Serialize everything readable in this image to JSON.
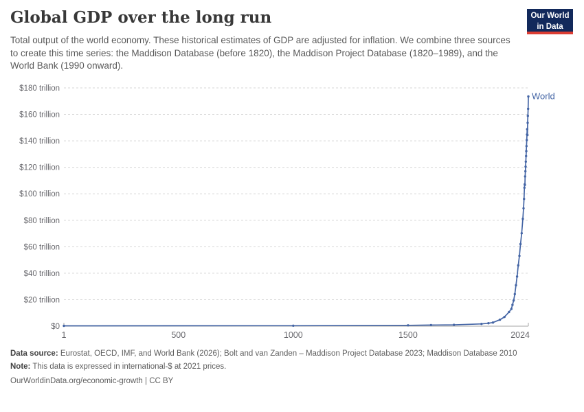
{
  "header": {
    "title": "Global GDP over the long run",
    "subtitle": "Total output of the world economy. These historical estimates of GDP are adjusted for inflation. We combine three sources to create this time series: the Maddison Database (before 1820), the Maddison Project Database (1820–1989), and the World Bank (1990 onward).",
    "logo": {
      "line1": "Our World",
      "line2": "in Data",
      "bg_color": "#12295b",
      "accent_color": "#dc3d33"
    }
  },
  "chart_data": {
    "type": "line",
    "title": "Global GDP over the long run",
    "xlabel": "",
    "ylabel": "",
    "unit": "trillion international-$ at 2021 prices",
    "xlim": [
      1,
      2024
    ],
    "ylim": [
      0,
      180
    ],
    "grid": "horizontal-dashed",
    "grid_color": "#d5d5d5",
    "axis_color": "#a5a5a5",
    "axis_label_color": "#67676c",
    "legend_position": "end-of-line",
    "xticks": [
      {
        "value": 1,
        "label": "1"
      },
      {
        "value": 500,
        "label": "500"
      },
      {
        "value": 1000,
        "label": "1000"
      },
      {
        "value": 1500,
        "label": "1500"
      },
      {
        "value": 2024,
        "label": "2024"
      }
    ],
    "yticks": [
      {
        "value": 0,
        "label": "$0"
      },
      {
        "value": 20,
        "label": "$20 trillion"
      },
      {
        "value": 40,
        "label": "$40 trillion"
      },
      {
        "value": 60,
        "label": "$60 trillion"
      },
      {
        "value": 80,
        "label": "$80 trillion"
      },
      {
        "value": 100,
        "label": "$100 trillion"
      },
      {
        "value": 120,
        "label": "$120 trillion"
      },
      {
        "value": 140,
        "label": "$140 trillion"
      },
      {
        "value": 160,
        "label": "$160 trillion"
      },
      {
        "value": 180,
        "label": "$180 trillion"
      }
    ],
    "series": [
      {
        "name": "World",
        "color": "#4465a5",
        "points": [
          [
            1,
            0.25
          ],
          [
            1000,
            0.34
          ],
          [
            1500,
            0.62
          ],
          [
            1600,
            0.85
          ],
          [
            1700,
            1.0
          ],
          [
            1820,
            1.69
          ],
          [
            1850,
            2.24
          ],
          [
            1870,
            2.74
          ],
          [
            1900,
            4.87
          ],
          [
            1920,
            6.96
          ],
          [
            1940,
            10.7
          ],
          [
            1950,
            13.0
          ],
          [
            1955,
            16.1
          ],
          [
            1960,
            19.4
          ],
          [
            1965,
            24.2
          ],
          [
            1970,
            30.9
          ],
          [
            1975,
            37.5
          ],
          [
            1980,
            45.9
          ],
          [
            1985,
            53.1
          ],
          [
            1990,
            62.0
          ],
          [
            1995,
            70.2
          ],
          [
            2000,
            81.1
          ],
          [
            2003,
            89.0
          ],
          [
            2005,
            96.1
          ],
          [
            2007,
            104.6
          ],
          [
            2008,
            107.1
          ],
          [
            2009,
            106.7
          ],
          [
            2010,
            113.1
          ],
          [
            2011,
            117.0
          ],
          [
            2012,
            120.5
          ],
          [
            2013,
            124.3
          ],
          [
            2014,
            128.5
          ],
          [
            2015,
            132.2
          ],
          [
            2016,
            136.0
          ],
          [
            2017,
            140.6
          ],
          [
            2018,
            144.8
          ],
          [
            2019,
            148.8
          ],
          [
            2020,
            144.4
          ],
          [
            2021,
            153.6
          ],
          [
            2022,
            158.9
          ],
          [
            2023,
            164.2
          ],
          [
            2024,
            173.5
          ]
        ]
      }
    ]
  },
  "footer": {
    "data_source_label": "Data source:",
    "data_source": "Eurostat, OECD, IMF, and World Bank (2026); Bolt and van Zanden – Maddison Project Database 2023; Maddison Database 2010",
    "note_label": "Note:",
    "note": "This data is expressed in international-$ at 2021 prices.",
    "attribution": "OurWorldinData.org/economic-growth | CC BY"
  }
}
